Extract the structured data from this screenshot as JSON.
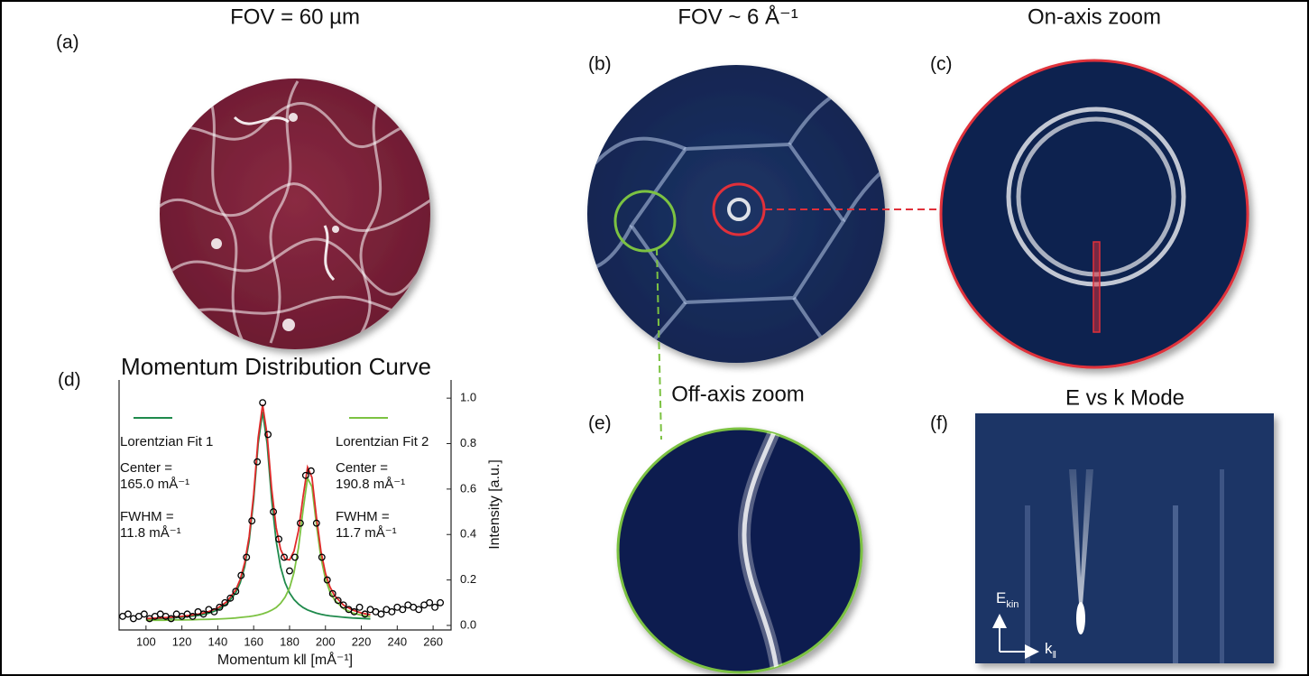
{
  "panels": [
    {
      "label": "(a)",
      "title": "FOV = 60 µm"
    },
    {
      "label": "(b)",
      "title": "FOV ~ 6 Å⁻¹"
    },
    {
      "label": "(c)",
      "title": "On-axis zoom"
    },
    {
      "label": "(d)"
    },
    {
      "label": "(e)",
      "title": "Off-axis zoom"
    },
    {
      "label": "(f)",
      "title": "E vs k Mode"
    }
  ],
  "ek_axes": {
    "y": [
      "E",
      "kin"
    ],
    "x": [
      "k",
      "‖"
    ]
  },
  "chart_data": {
    "type": "scatter",
    "title": "Momentum Distribution Curve",
    "x_label": "Momentum k‖ [mÅ⁻¹]",
    "y_label": "Intensity [a.u.]",
    "xlim": [
      85,
      270
    ],
    "ylim": [
      -0.02,
      1.08
    ],
    "xticks": [
      100,
      120,
      140,
      160,
      180,
      200,
      220,
      240,
      260
    ],
    "yticks": [
      {
        "value": 0,
        "label": "0.0"
      },
      0.2,
      0.4,
      0.6,
      0.8,
      {
        "value": 1,
        "label": "1.0"
      }
    ],
    "y_axis_side": "right",
    "series": [
      {
        "name": "Lorentzian Fit 1",
        "color": "#1f8a4c",
        "mode": "lines",
        "x": [
          100,
          105,
          110,
          115,
          120,
          125,
          130,
          135,
          140,
          145,
          150,
          152.5,
          155,
          157.5,
          160,
          162.5,
          165,
          167.5,
          170,
          172.5,
          175,
          177.5,
          180,
          182.5,
          185,
          187.5,
          190,
          192.5,
          195,
          197.5,
          200,
          202.5,
          205,
          210,
          215,
          220,
          225
        ],
        "values": [
          0.028,
          0.029,
          0.031,
          0.033,
          0.036,
          0.04,
          0.045,
          0.054,
          0.068,
          0.094,
          0.143,
          0.188,
          0.258,
          0.372,
          0.555,
          0.8,
          0.94,
          0.8,
          0.555,
          0.372,
          0.258,
          0.188,
          0.143,
          0.114,
          0.094,
          0.079,
          0.068,
          0.061,
          0.054,
          0.049,
          0.045,
          0.042,
          0.04,
          0.036,
          0.033,
          0.031,
          0.029
        ]
      },
      {
        "name": "Lorentzian Fit 2",
        "color": "#7cc242",
        "mode": "lines",
        "x": [
          100,
          105,
          110,
          115,
          120,
          125,
          130,
          135,
          140,
          145,
          150,
          152.5,
          155,
          157.5,
          160,
          162.5,
          165,
          167.5,
          170,
          172.5,
          175,
          177.5,
          180,
          182.5,
          185,
          187.5,
          190,
          192.5,
          195,
          197.5,
          200,
          202.5,
          205,
          210,
          215,
          220,
          225
        ],
        "values": [
          0.023,
          0.023,
          0.023,
          0.024,
          0.024,
          0.025,
          0.026,
          0.027,
          0.028,
          0.03,
          0.033,
          0.035,
          0.037,
          0.039,
          0.042,
          0.046,
          0.051,
          0.058,
          0.067,
          0.079,
          0.097,
          0.124,
          0.165,
          0.233,
          0.343,
          0.506,
          0.648,
          0.61,
          0.442,
          0.297,
          0.204,
          0.148,
          0.113,
          0.074,
          0.055,
          0.045,
          0.038
        ]
      },
      {
        "color": "#e02a2a",
        "mode": "lines",
        "x": [
          100,
          105,
          110,
          115,
          120,
          125,
          130,
          135,
          140,
          145,
          150,
          152.5,
          155,
          157.5,
          160,
          162.5,
          165,
          167.5,
          170,
          172.5,
          175,
          177.5,
          180,
          182.5,
          185,
          187.5,
          190,
          192.5,
          195,
          197.5,
          200,
          202.5,
          205,
          210,
          215,
          220,
          225
        ],
        "values": [
          0.03,
          0.032,
          0.034,
          0.036,
          0.04,
          0.045,
          0.051,
          0.061,
          0.077,
          0.104,
          0.156,
          0.203,
          0.275,
          0.391,
          0.577,
          0.826,
          0.971,
          0.838,
          0.602,
          0.431,
          0.335,
          0.292,
          0.288,
          0.327,
          0.417,
          0.565,
          0.696,
          0.651,
          0.476,
          0.326,
          0.229,
          0.17,
          0.132,
          0.09,
          0.068,
          0.055,
          0.047
        ]
      },
      {
        "color": "#000000",
        "mode": "markers",
        "x": [
          87,
          90,
          93,
          96,
          99,
          102,
          105,
          108,
          111,
          114,
          117,
          120,
          123,
          126,
          129,
          132,
          135,
          138,
          141,
          144,
          147,
          150,
          153,
          156,
          159,
          162,
          165,
          168,
          171,
          174,
          177,
          180,
          183,
          186,
          189,
          192,
          195,
          198,
          201,
          204,
          207,
          210,
          213,
          216,
          219,
          222,
          225,
          228,
          231,
          234,
          237,
          240,
          243,
          246,
          249,
          252,
          255,
          258,
          261,
          264
        ],
        "values": [
          0.04,
          0.05,
          0.03,
          0.04,
          0.05,
          0.03,
          0.04,
          0.05,
          0.04,
          0.03,
          0.05,
          0.04,
          0.05,
          0.04,
          0.06,
          0.05,
          0.07,
          0.06,
          0.08,
          0.1,
          0.12,
          0.15,
          0.22,
          0.3,
          0.46,
          0.72,
          0.98,
          0.84,
          0.5,
          0.38,
          0.3,
          0.24,
          0.3,
          0.45,
          0.66,
          0.68,
          0.45,
          0.3,
          0.2,
          0.14,
          0.11,
          0.09,
          0.07,
          0.06,
          0.08,
          0.05,
          0.07,
          0.06,
          0.05,
          0.07,
          0.06,
          0.08,
          0.07,
          0.09,
          0.08,
          0.07,
          0.09,
          0.1,
          0.08,
          0.1
        ]
      }
    ],
    "fit_results": [
      {
        "center_label": "Center =",
        "center": "165.0 mÅ⁻¹",
        "fwhm_label": "FWHM =",
        "fwhm": "11.8 mÅ⁻¹"
      },
      {
        "center_label": "Center =",
        "center": "190.8 mÅ⁻¹",
        "fwhm_label": "FWHM =",
        "fwhm": "11.7 mÅ⁻¹"
      }
    ]
  }
}
